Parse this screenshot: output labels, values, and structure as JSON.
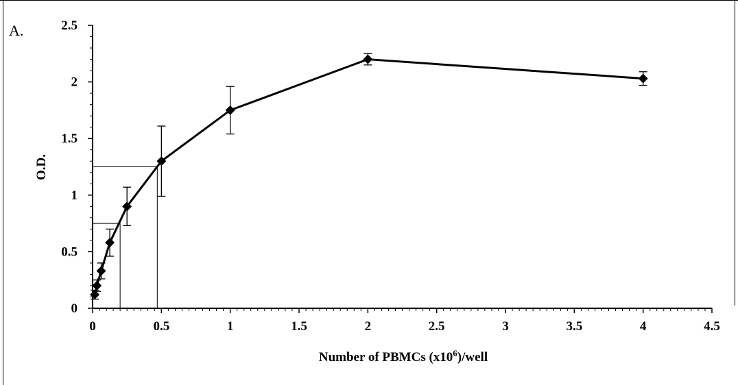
{
  "panel_label": "A.",
  "chart_data": {
    "type": "line",
    "xlabel_main": "Number of PBMCs (x10",
    "xlabel_sup": "6",
    "xlabel_tail": ")/well",
    "ylabel": "O.D.",
    "xlim": [
      0,
      4.5
    ],
    "ylim": [
      0,
      2.5
    ],
    "xticks": [
      "0",
      "0.5",
      "1",
      "1.5",
      "2",
      "2.5",
      "3",
      "3.5",
      "4",
      "4.5"
    ],
    "yticks": [
      "0",
      "0.5",
      "1",
      "1.5",
      "2",
      "2.5"
    ],
    "series": [
      {
        "x": [
          0.0156,
          0.03125,
          0.0625,
          0.125,
          0.25,
          0.5,
          1,
          2,
          4
        ],
        "y": [
          0.12,
          0.2,
          0.33,
          0.58,
          0.9,
          1.3,
          1.75,
          2.2,
          2.03
        ],
        "err": [
          0.04,
          0.05,
          0.07,
          0.12,
          0.17,
          0.31,
          0.21,
          0.05,
          0.06
        ]
      }
    ],
    "reference_lines": [
      {
        "x": 0.2,
        "y": 0.75
      },
      {
        "x": 0.47,
        "y": 1.25
      }
    ],
    "grid": false,
    "legend": "none"
  }
}
